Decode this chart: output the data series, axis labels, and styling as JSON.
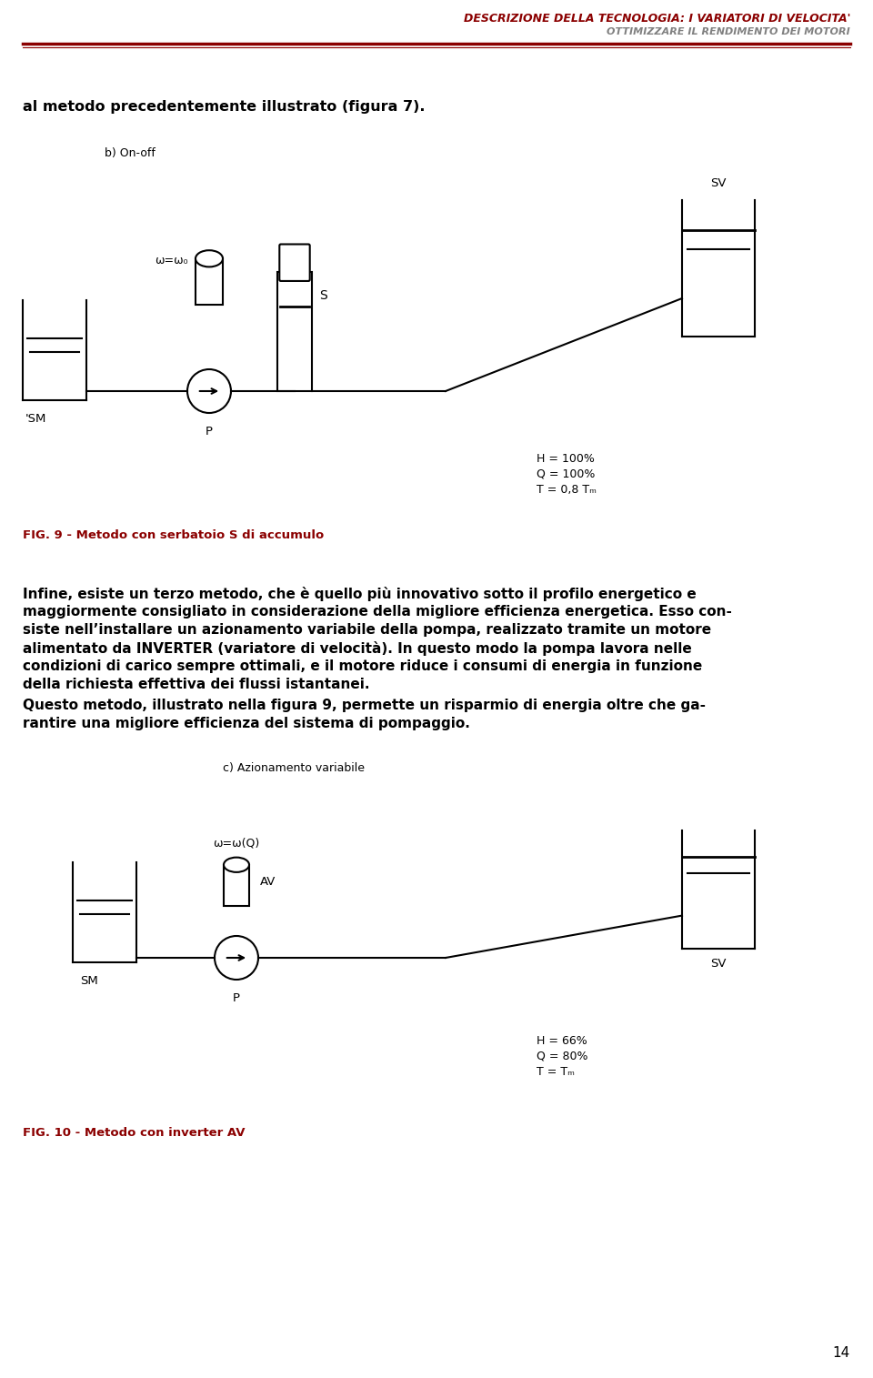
{
  "title_line1": "DESCRIZIONE DELLA TECNOLOGIA: I VARIATORI DI VELOCITA'",
  "title_line2": "OTTIMIZZARE IL RENDIMENTO DEI MOTORI",
  "title_color1": "#8B0000",
  "title_color2": "#808080",
  "intro_text": "al metodo precedentemente illustrato (figura 7).",
  "section_b_label": "b) On-off",
  "fig9_caption": "FIG. 9 - Metodo con serbatoio S di accumulo",
  "section_c_label": "c) Azionamento variabile",
  "fig10_caption": "FIG. 10 - Metodo con inverter AV",
  "page_number": "14",
  "bg_color": "#ffffff",
  "body1_lines": [
    "Infine, esiste un terzo metodo, che è quello più innovativo sotto il profilo energetico e",
    "maggiormente consigliato in considerazione della migliore efficienza energetica. Esso con-",
    "siste nell’installare un azionamento variabile della pompa, realizzato tramite un motore",
    "alimentato da INVERTER (variatore di velocità). In questo modo la pompa lavora nelle",
    "condizioni di carico sempre ottimali, e il motore riduce i consumi di energia in funzione",
    "della richiesta effettiva dei flussi istantanei."
  ],
  "body2_lines": [
    "Questo metodo, illustrato nella figura 9, permette un risparmio di energia oltre che ga-",
    "rantire una migliore efficienza del sistema di pompaggio."
  ],
  "hqt1_lines": [
    "H = 100%",
    "Q = 100%",
    "T = 0,8 Tₘ"
  ],
  "hqt2_lines": [
    "H = 66%",
    "Q = 80%",
    "T = Tₘ"
  ],
  "omega0_label": "ω=ω₀",
  "omegaQ_label": "ω=ω(Q)"
}
